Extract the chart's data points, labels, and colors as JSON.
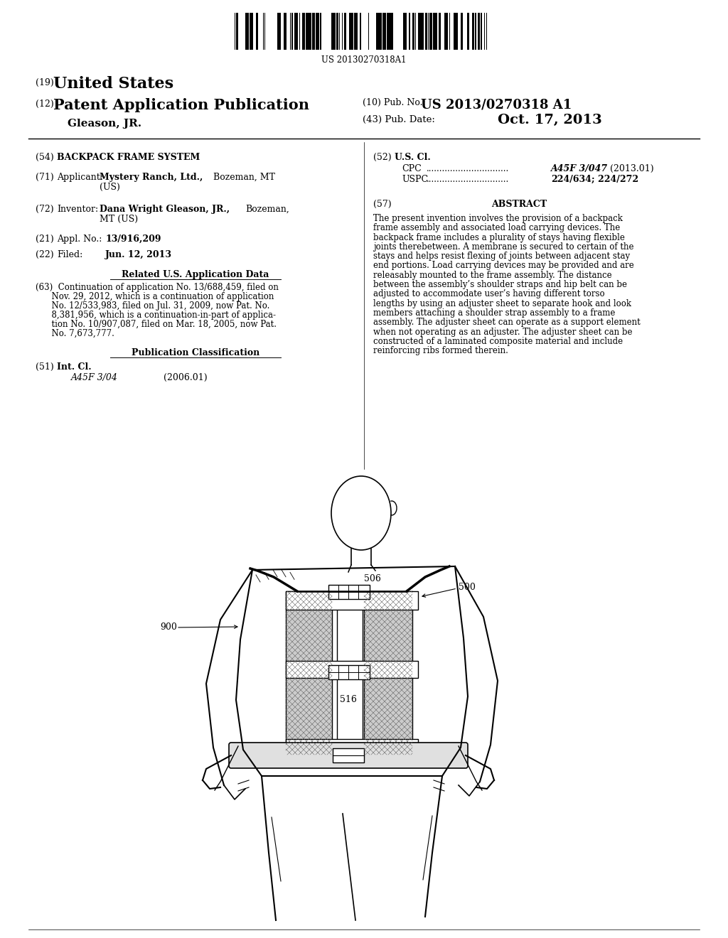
{
  "background_color": "#ffffff",
  "barcode_text": "US 20130270318A1",
  "header": {
    "country_number": "(19)",
    "country": "United States",
    "type_number": "(12)",
    "type": "Patent Application Publication",
    "pub_number_label": "(10) Pub. No.:",
    "pub_number": "US 2013/0270318 A1",
    "inventor_name": "Gleason, JR.",
    "pub_date_label": "(43) Pub. Date:",
    "pub_date": "Oct. 17, 2013"
  },
  "left_col": {
    "title_num": "(54)",
    "title": "BACKPACK FRAME SYSTEM",
    "applicant_num": "(71)",
    "applicant_label": "Applicant:",
    "applicant_bold": "Mystery Ranch, Ltd.,",
    "applicant_rest": "Bozeman, MT",
    "applicant_us": "(US)",
    "inventor_num": "(72)",
    "inventor_label": "Inventor:",
    "inventor_bold": "Dana Wright Gleason, JR.,",
    "inventor_rest": "Bozeman,",
    "inventor_us": "MT (US)",
    "appl_num": "(21)",
    "appl_label": "Appl. No.:",
    "appl_no": "13/916,209",
    "filed_num": "(22)",
    "filed_label": "Filed:",
    "filed_date": "Jun. 12, 2013",
    "related_title": "Related U.S. Application Data",
    "related_lines": [
      "(63)  Continuation of application No. 13/688,459, filed on",
      "      Nov. 29, 2012, which is a continuation of application",
      "      No. 12/533,983, filed on Jul. 31, 2009, now Pat. No.",
      "      8,381,956, which is a continuation-in-part of applica-",
      "      tion No. 10/907,087, filed on Mar. 18, 2005, now Pat.",
      "      No. 7,673,777."
    ],
    "pub_class_title": "Publication Classification",
    "int_cl_num": "(51)",
    "int_cl_label": "Int. Cl.",
    "int_cl_class": "A45F 3/04",
    "int_cl_date": "(2006.01)"
  },
  "right_col": {
    "us_cl_num": "(52)",
    "us_cl_label": "U.S. Cl.",
    "cpc_label": "CPC",
    "cpc_class": "A45F 3/047",
    "cpc_date": "(2013.01)",
    "uspc_label": "USPC",
    "uspc_class": "224/634",
    "uspc_class2": "224/272",
    "abstract_num": "(57)",
    "abstract_title": "ABSTRACT",
    "abstract_lines": [
      "The present invention involves the provision of a backpack",
      "frame assembly and associated load carrying devices. The",
      "backpack frame includes a plurality of stays having flexible",
      "joints therebetween. A membrane is secured to certain of the",
      "stays and helps resist flexing of joints between adjacent stay",
      "end portions. Load carrying devices may be provided and are",
      "releasably mounted to the frame assembly. The distance",
      "between the assembly’s shoulder straps and hip belt can be",
      "adjusted to accommodate user’s having different torso",
      "lengths by using an adjuster sheet to separate hook and look",
      "members attaching a shoulder strap assembly to a frame",
      "assembly. The adjuster sheet can operate as a support element",
      "when not operating as an adjuster. The adjuster sheet can be",
      "constructed of a laminated composite material and include",
      "reinforcing ribs formed therein."
    ]
  },
  "diagram": {
    "label_900": "900",
    "label_506": "506",
    "label_500": "500",
    "label_516": "516"
  }
}
